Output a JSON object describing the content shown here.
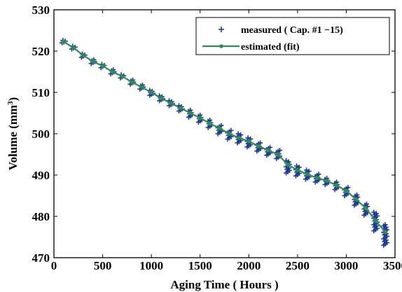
{
  "chart_data": {
    "type": "scatter",
    "xlabel": "Aging Time ( Hours )",
    "ylabel": "Volume (mm",
    "ylabel_sup": "3",
    "ylabel_close": ")",
    "xlim": [
      0,
      3500
    ],
    "ylim": [
      470,
      530
    ],
    "xticks": [
      0,
      500,
      1000,
      1500,
      2000,
      2500,
      3000,
      3500
    ],
    "yticks": [
      470,
      480,
      490,
      500,
      510,
      520,
      530
    ],
    "grid": false,
    "legend_position": "top-right",
    "colors": {
      "measured": "#1f3a8f",
      "estimated": "#2e8b57"
    },
    "series": [
      {
        "name": "measured ( Cap. #1 −15)",
        "marker": "plus",
        "x": [
          100,
          200,
          300,
          400,
          500,
          600,
          700,
          800,
          900,
          1000,
          1100,
          1200,
          1300,
          1400,
          1500,
          1600,
          1700,
          1800,
          1900,
          2000,
          2100,
          2200,
          2300,
          2400,
          2500,
          2600,
          2700,
          2800,
          2900,
          3000,
          3100,
          3200,
          3300,
          3400
        ],
        "y_min": [
          522.0,
          520.5,
          518.5,
          517.0,
          516.0,
          514.5,
          513.5,
          512.0,
          510.8,
          509.3,
          508.0,
          506.8,
          505.5,
          504.0,
          502.8,
          501.5,
          500.0,
          498.7,
          497.8,
          496.8,
          495.8,
          494.8,
          494.0,
          490.5,
          489.8,
          489.0,
          488.3,
          487.7,
          486.5,
          485.0,
          482.7,
          480.3,
          476.5,
          473.0
        ],
        "y_max": [
          522.6,
          521.2,
          519.3,
          517.9,
          516.8,
          515.5,
          514.3,
          513.0,
          511.8,
          510.5,
          509.2,
          508.0,
          506.8,
          505.7,
          504.5,
          503.3,
          502.0,
          500.8,
          500.0,
          499.0,
          497.8,
          496.7,
          496.0,
          493.5,
          492.2,
          491.2,
          490.2,
          489.2,
          488.3,
          487.0,
          485.2,
          483.0,
          481.0,
          478.0
        ]
      },
      {
        "name": "estimated (fit)",
        "marker": "circle-line",
        "x": [
          100,
          200,
          300,
          400,
          500,
          600,
          700,
          800,
          900,
          1000,
          1100,
          1200,
          1300,
          1400,
          1500,
          1600,
          1700,
          1800,
          1900,
          2000,
          2100,
          2200,
          2300,
          2400,
          2500,
          2600,
          2700,
          2800,
          2900,
          3000,
          3100,
          3200,
          3300,
          3400
        ],
        "y": [
          522.3,
          520.8,
          519.0,
          517.5,
          516.4,
          515.0,
          513.9,
          512.5,
          511.3,
          510.0,
          508.6,
          507.4,
          506.2,
          505.0,
          503.8,
          502.5,
          501.3,
          500.0,
          499.0,
          498.2,
          497.0,
          496.0,
          495.0,
          492.5,
          491.2,
          490.2,
          489.3,
          488.6,
          487.5,
          486.2,
          484.1,
          482.0,
          479.0,
          476.2
        ]
      }
    ]
  }
}
